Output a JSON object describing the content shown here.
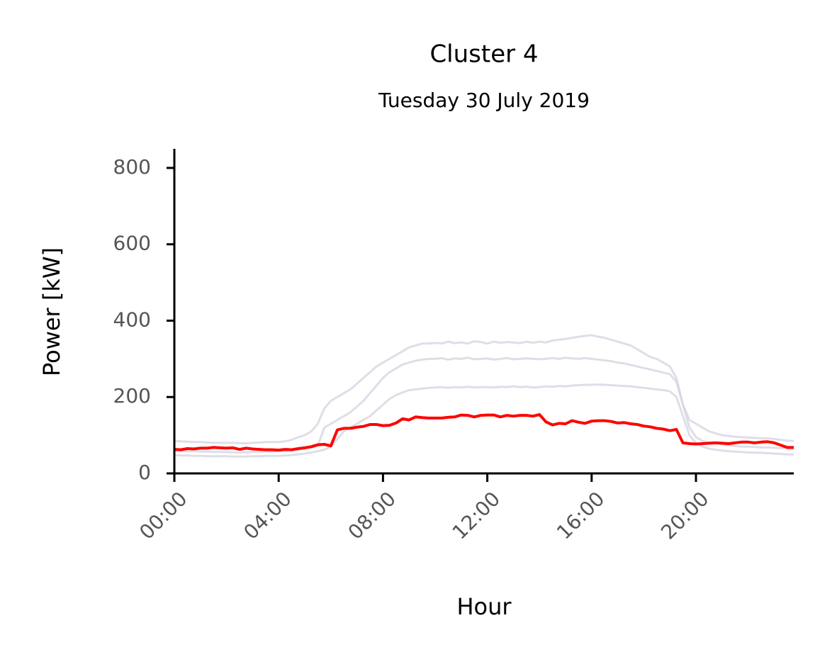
{
  "chart_data": {
    "type": "line",
    "title": "Cluster 4",
    "subtitle": "Tuesday 30 July 2019",
    "x_label": "Hour",
    "y_label": "Power [kW]",
    "x": [
      "00:00",
      "00:15",
      "00:30",
      "00:45",
      "01:00",
      "01:15",
      "01:30",
      "01:45",
      "02:00",
      "02:15",
      "02:30",
      "02:45",
      "03:00",
      "03:15",
      "03:30",
      "03:45",
      "04:00",
      "04:15",
      "04:30",
      "04:45",
      "05:00",
      "05:15",
      "05:30",
      "05:45",
      "06:00",
      "06:15",
      "06:30",
      "06:45",
      "07:00",
      "07:15",
      "07:30",
      "07:45",
      "08:00",
      "08:15",
      "08:30",
      "08:45",
      "09:00",
      "09:15",
      "09:30",
      "09:45",
      "10:00",
      "10:15",
      "10:30",
      "10:45",
      "11:00",
      "11:15",
      "11:30",
      "11:45",
      "12:00",
      "12:15",
      "12:30",
      "12:45",
      "13:00",
      "13:15",
      "13:30",
      "13:45",
      "14:00",
      "14:15",
      "14:30",
      "14:45",
      "15:00",
      "15:15",
      "15:30",
      "15:45",
      "16:00",
      "16:15",
      "16:30",
      "16:45",
      "17:00",
      "17:15",
      "17:30",
      "17:45",
      "18:00",
      "18:15",
      "18:30",
      "18:45",
      "19:00",
      "19:15",
      "19:30",
      "19:45",
      "20:00",
      "20:15",
      "20:30",
      "20:45",
      "21:00",
      "21:15",
      "21:30",
      "21:45",
      "22:00",
      "22:15",
      "22:30",
      "22:45",
      "23:00",
      "23:15",
      "23:30",
      "23:45"
    ],
    "series": [
      {
        "color": "#d6d6e2",
        "values": [
          85,
          84,
          83,
          82,
          82,
          81,
          80,
          80,
          80,
          80,
          79,
          79,
          80,
          81,
          82,
          82,
          82,
          84,
          88,
          95,
          100,
          110,
          130,
          170,
          190,
          200,
          210,
          220,
          235,
          250,
          265,
          280,
          290,
          300,
          310,
          320,
          330,
          335,
          340,
          340,
          342,
          340,
          345,
          341,
          343,
          340,
          346,
          344,
          340,
          345,
          342,
          344,
          343,
          341,
          345,
          342,
          345,
          343,
          348,
          350,
          352,
          355,
          358,
          360,
          362,
          358,
          355,
          350,
          345,
          340,
          335,
          325,
          315,
          305,
          300,
          290,
          280,
          250,
          180,
          140,
          130,
          120,
          110,
          105,
          100,
          98,
          96,
          95,
          94,
          93,
          92,
          92,
          90,
          88,
          86,
          85
        ]
      },
      {
        "color": "#d6d6e2",
        "values": [
          60,
          59,
          58,
          58,
          57,
          57,
          56,
          56,
          56,
          55,
          55,
          55,
          56,
          56,
          57,
          57,
          58,
          59,
          60,
          62,
          65,
          68,
          72,
          120,
          130,
          140,
          150,
          160,
          175,
          190,
          210,
          230,
          250,
          265,
          275,
          285,
          290,
          295,
          298,
          300,
          300,
          302,
          298,
          301,
          300,
          303,
          299,
          300,
          301,
          298,
          300,
          302,
          299,
          300,
          301,
          300,
          299,
          300,
          302,
          300,
          303,
          301,
          300,
          302,
          300,
          298,
          296,
          294,
          290,
          288,
          284,
          280,
          276,
          272,
          268,
          264,
          260,
          240,
          180,
          120,
          95,
          85,
          80,
          78,
          76,
          74,
          72,
          70,
          70,
          69,
          68,
          68,
          67,
          66,
          65,
          64
        ]
      },
      {
        "color": "#d6d6e2",
        "values": [
          48,
          47,
          47,
          46,
          46,
          45,
          45,
          45,
          45,
          44,
          44,
          44,
          45,
          45,
          46,
          46,
          46,
          47,
          48,
          50,
          52,
          55,
          58,
          62,
          70,
          90,
          110,
          120,
          130,
          140,
          150,
          165,
          180,
          195,
          205,
          212,
          218,
          220,
          222,
          224,
          225,
          226,
          224,
          226,
          225,
          227,
          225,
          226,
          226,
          225,
          227,
          226,
          228,
          226,
          227,
          225,
          226,
          228,
          227,
          229,
          228,
          230,
          231,
          232,
          232,
          233,
          232,
          231,
          230,
          229,
          228,
          226,
          224,
          222,
          220,
          218,
          215,
          200,
          150,
          100,
          80,
          70,
          65,
          62,
          60,
          58,
          57,
          56,
          55,
          54,
          54,
          53,
          52,
          51,
          50,
          50
        ]
      },
      {
        "color": "#ff0000",
        "values": [
          63,
          62,
          65,
          64,
          66,
          66,
          68,
          67,
          66,
          67,
          63,
          66,
          64,
          63,
          62,
          62,
          61,
          63,
          62,
          65,
          67,
          70,
          75,
          76,
          72,
          114,
          118,
          118,
          121,
          123,
          128,
          128,
          125,
          126,
          132,
          143,
          140,
          148,
          146,
          145,
          145,
          145,
          147,
          148,
          153,
          152,
          148,
          152,
          153,
          153,
          148,
          152,
          150,
          152,
          152,
          150,
          154,
          135,
          127,
          131,
          130,
          138,
          134,
          131,
          137,
          138,
          138,
          136,
          132,
          133,
          130,
          128,
          124,
          122,
          118,
          116,
          112,
          115,
          80,
          78,
          77,
          78,
          79,
          80,
          79,
          78,
          80,
          82,
          82,
          80,
          82,
          83,
          80,
          74,
          68,
          68
        ]
      }
    ],
    "xlim": [
      "00:00",
      "23:45"
    ],
    "xticks": [
      "00:00",
      "04:00",
      "08:00",
      "12:00",
      "16:00",
      "20:00"
    ],
    "ylim": [
      0,
      850
    ],
    "yticks": [
      0,
      200,
      400,
      600,
      800
    ],
    "grid": false
  }
}
